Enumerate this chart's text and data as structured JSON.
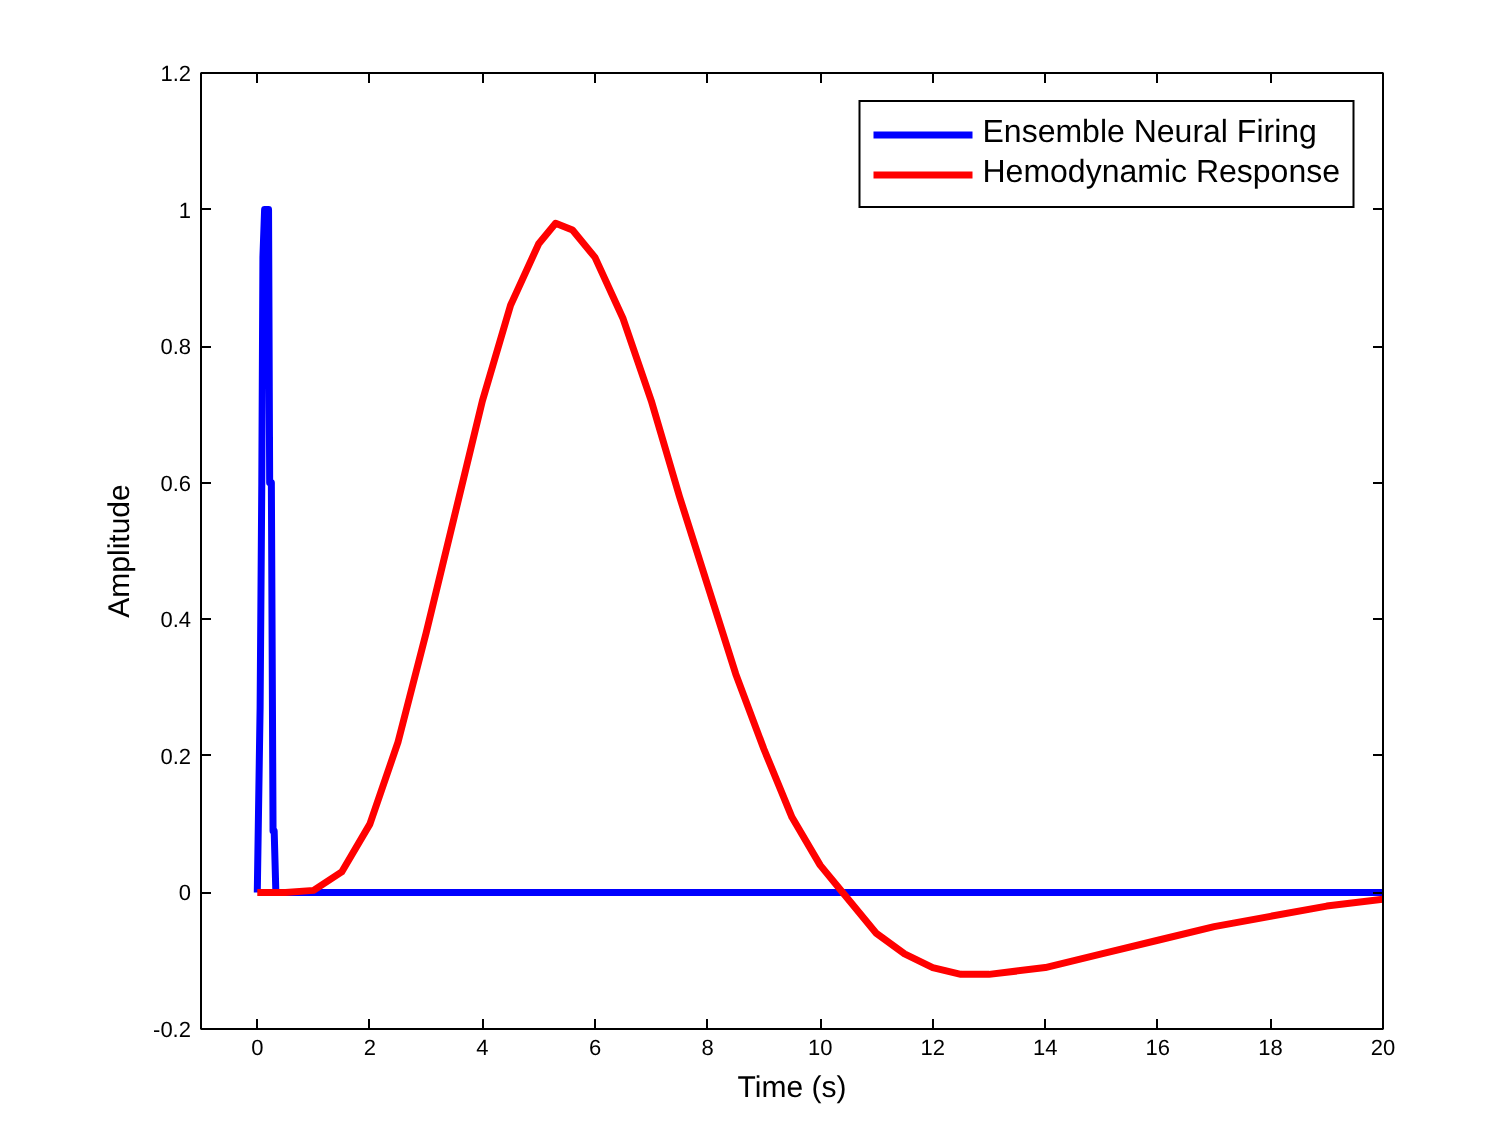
{
  "chart_data": {
    "type": "line",
    "xlabel": "Time (s)",
    "ylabel": "Amplitude",
    "xlim": [
      -1,
      20
    ],
    "ylim": [
      -0.2,
      1.2
    ],
    "xticks": [
      0,
      2,
      4,
      6,
      8,
      10,
      12,
      14,
      16,
      18,
      20
    ],
    "yticks": [
      -0.2,
      0,
      0.2,
      0.4,
      0.6,
      0.8,
      1,
      1.2
    ],
    "grid": false,
    "legend": "top right",
    "marker": "none",
    "line_style": "solid",
    "series": [
      {
        "name": "Ensemble Neural Firing",
        "color": "#0000ff",
        "x": [
          0,
          0.05,
          0.08,
          0.1,
          0.13,
          0.15,
          0.2,
          0.22,
          0.25,
          0.28,
          0.3,
          0.33,
          0.35,
          1,
          5,
          10,
          15,
          20
        ],
        "values": [
          0,
          0.27,
          0.6,
          0.93,
          1,
          1,
          1,
          0.6,
          0.6,
          0.09,
          0.09,
          0,
          0,
          0,
          0,
          0,
          0,
          0
        ]
      },
      {
        "name": "Hemodynamic Response",
        "color": "#ff0000",
        "x": [
          0,
          0.5,
          1,
          1.5,
          2,
          2.5,
          3,
          3.5,
          4,
          4.5,
          5,
          5.3,
          5.6,
          6,
          6.5,
          7,
          7.5,
          8,
          8.5,
          9,
          9.5,
          10,
          10.4,
          11,
          11.5,
          12,
          12.5,
          13,
          14,
          15,
          16,
          17,
          18,
          19,
          20
        ],
        "values": [
          0,
          0,
          0.003,
          0.03,
          0.1,
          0.22,
          0.38,
          0.55,
          0.72,
          0.86,
          0.95,
          0.98,
          0.97,
          0.93,
          0.84,
          0.72,
          0.58,
          0.45,
          0.32,
          0.21,
          0.11,
          0.04,
          0,
          -0.06,
          -0.09,
          -0.11,
          -0.12,
          -0.12,
          -0.11,
          -0.09,
          -0.07,
          -0.05,
          -0.035,
          -0.02,
          -0.01
        ]
      }
    ]
  }
}
